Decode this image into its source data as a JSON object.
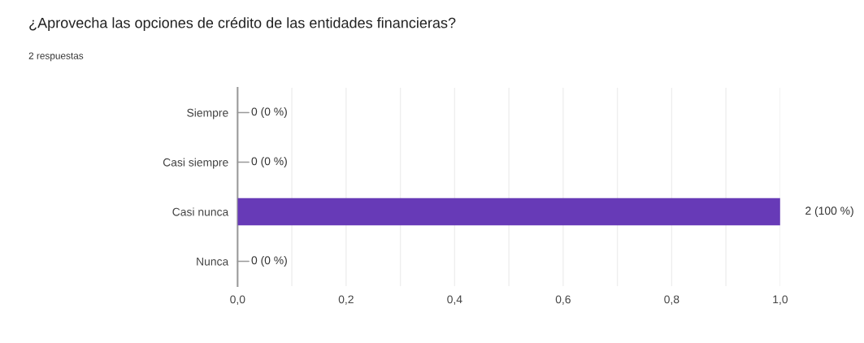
{
  "chart_data": {
    "type": "bar",
    "orientation": "horizontal",
    "title": "¿Aprovecha las opciones de crédito de las entidades financieras?",
    "subtitle": "2 respuestas",
    "categories": [
      "Siempre",
      "Casi siempre",
      "Casi nunca",
      "Nunca"
    ],
    "values": [
      0,
      0,
      1.0,
      0
    ],
    "color": "#673ab7",
    "value_labels": [
      "0 (0 %)",
      "0 (0 %)",
      "2 (100 %)",
      "0 (0 %)"
    ],
    "xlim": [
      0,
      1.0
    ],
    "xticks": [
      {
        "value": 0,
        "label": "0,0"
      },
      {
        "value": 0.1,
        "label": null
      },
      {
        "value": 0.2,
        "label": "0,2"
      },
      {
        "value": 0.3,
        "label": null
      },
      {
        "value": 0.4,
        "label": "0,4"
      },
      {
        "value": 0.5,
        "label": null
      },
      {
        "value": 0.6,
        "label": "0,6"
      },
      {
        "value": 0.7,
        "label": null
      },
      {
        "value": 0.8,
        "label": "0,8"
      },
      {
        "value": 0.9,
        "label": null
      },
      {
        "value": 1.0,
        "label": "1,0"
      }
    ],
    "grid": "x",
    "legend": false
  }
}
